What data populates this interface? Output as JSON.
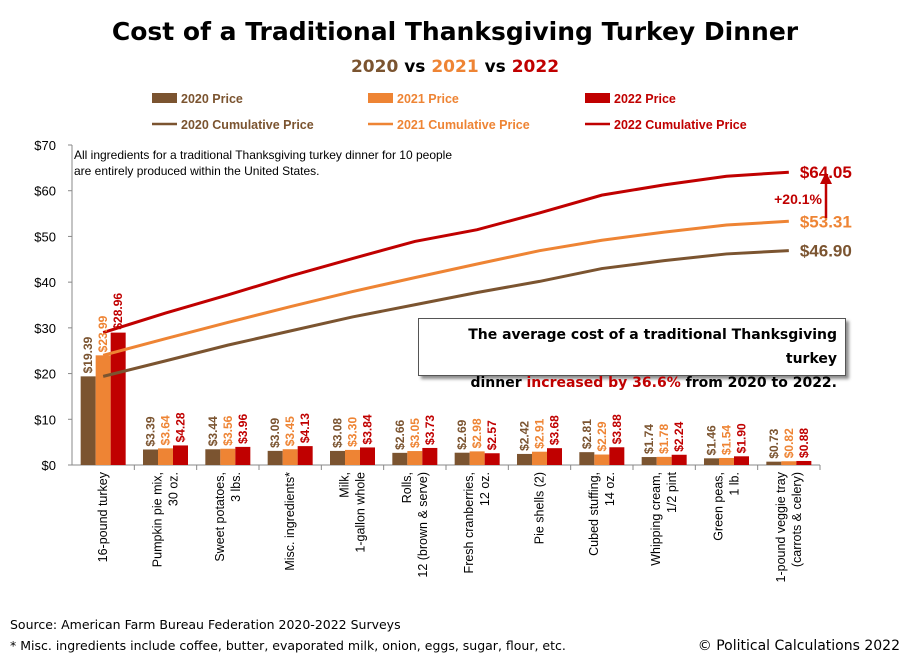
{
  "title": "Cost of a Traditional Thanksgiving Turkey Dinner",
  "subtitle": {
    "y1": "2020",
    "vs1": " vs ",
    "y2": "2021",
    "vs2": " vs ",
    "y3": "2022"
  },
  "colors": {
    "c2020": "#7b5430",
    "c2021": "#ee8434",
    "c2022": "#c00000",
    "subtitle_2020": "#7b5430",
    "subtitle_2021": "#ee8434",
    "subtitle_2022": "#c00000"
  },
  "note": [
    "All ingredients for a traditional Thanksgiving turkey dinner for 10 people",
    "are entirely produced within the United States."
  ],
  "callout": {
    "line1": "The average cost of a traditional Thanksgiving turkey",
    "line2_pre": "dinner ",
    "line2_em": "increased by 36.6%",
    "line2_post": " from 2020 to 2022."
  },
  "pct_label": "+20.1%",
  "source": "Source: American Farm Bureau Federation 2020-2022 Surveys",
  "footnote": "* Misc. ingredients include coffee, butter, evaporated milk, onion, eggs, sugar, flour, etc.",
  "copyright": "© Political Calculations 2022",
  "chart_data": {
    "type": "bar",
    "title": "Cost of a Traditional Thanksgiving Turkey Dinner",
    "subtitle": "2020 vs 2021 vs 2022",
    "ylim": [
      0,
      70
    ],
    "yticks": [
      "$0",
      "$10",
      "$20",
      "$30",
      "$40",
      "$50",
      "$60",
      "$70"
    ],
    "grid": false,
    "legend_position": "top",
    "categories": [
      [
        "16-pound turkey"
      ],
      [
        "Pumpkin pie mix,",
        "30 oz."
      ],
      [
        "Sweet potatoes,",
        "3 lbs."
      ],
      [
        "Misc. ingredients*"
      ],
      [
        "Milk,",
        "1-gallon whole"
      ],
      [
        "Rolls,",
        "12 (brown & serve)"
      ],
      [
        "Fresh cranberries,",
        "12 oz."
      ],
      [
        "Pie shells (2)"
      ],
      [
        "Cubed stuffing,",
        "14 oz."
      ],
      [
        "Whipping cream,",
        "1/2 pint"
      ],
      [
        "Green peas,",
        "1 lb."
      ],
      [
        "1-pound veggie tray",
        "(carrots & celery)"
      ]
    ],
    "series": [
      {
        "name": "2020 Price",
        "values": [
          19.39,
          3.39,
          3.44,
          3.09,
          3.08,
          2.66,
          2.69,
          2.42,
          2.81,
          1.74,
          1.46,
          0.73
        ],
        "labels": [
          "$19.39",
          "$3.39",
          "$3.44",
          "$3.09",
          "$3.08",
          "$2.66",
          "$2.69",
          "$2.42",
          "$2.81",
          "$1.74",
          "$1.46",
          "$0.73"
        ]
      },
      {
        "name": "2021 Price",
        "values": [
          23.99,
          3.64,
          3.56,
          3.45,
          3.3,
          3.05,
          2.98,
          2.91,
          2.29,
          1.78,
          1.54,
          0.82
        ],
        "labels": [
          "$23.99",
          "$3.64",
          "$3.56",
          "$3.45",
          "$3.30",
          "$3.05",
          "$2.98",
          "$2.91",
          "$2.29",
          "$1.78",
          "$1.54",
          "$0.82"
        ]
      },
      {
        "name": "2022 Price",
        "values": [
          28.96,
          4.28,
          3.96,
          4.13,
          3.84,
          3.73,
          2.57,
          3.68,
          3.88,
          2.24,
          1.9,
          0.88
        ],
        "labels": [
          "$28.96",
          "$4.28",
          "$3.96",
          "$4.13",
          "$3.84",
          "$3.73",
          "$2.57",
          "$3.68",
          "$3.88",
          "$2.24",
          "$1.90",
          "$0.88"
        ]
      }
    ],
    "line_series": [
      {
        "name": "2020 Cumulative Price",
        "values": [
          19.39,
          22.78,
          26.22,
          29.31,
          32.39,
          35.05,
          37.74,
          40.16,
          42.97,
          44.71,
          46.17,
          46.9
        ]
      },
      {
        "name": "2021 Cumulative Price",
        "values": [
          23.99,
          27.63,
          31.19,
          34.64,
          37.94,
          40.99,
          43.97,
          46.88,
          49.17,
          50.95,
          52.49,
          53.31
        ]
      },
      {
        "name": "2022 Cumulative Price",
        "values": [
          28.96,
          33.24,
          37.2,
          41.33,
          45.17,
          48.9,
          51.47,
          55.15,
          59.03,
          61.27,
          63.17,
          64.05
        ]
      }
    ],
    "end_labels": [
      "$46.90",
      "$53.31",
      "$64.05"
    ]
  }
}
